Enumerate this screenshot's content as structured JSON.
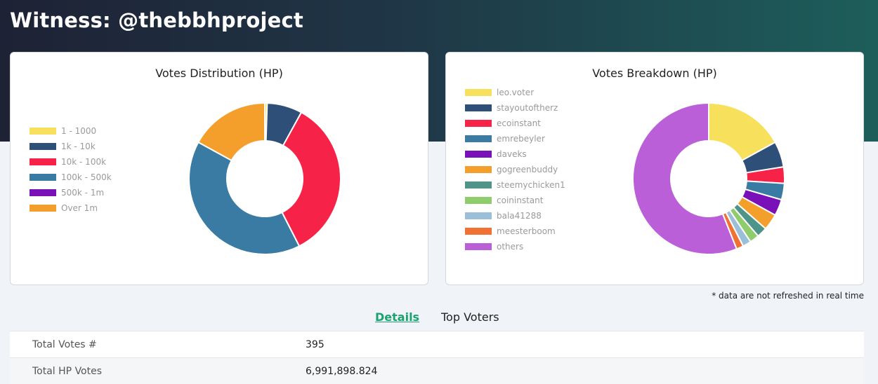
{
  "page": {
    "title": "Witness: @thebbhproject",
    "note": "* data are not refreshed in real time"
  },
  "tabs": [
    {
      "label": "Details",
      "active": true
    },
    {
      "label": "Top Voters",
      "active": false
    }
  ],
  "details": [
    {
      "label": "Total Votes #",
      "value": "395"
    },
    {
      "label": "Total HP Votes",
      "value": "6,991,898.824"
    }
  ],
  "chart_data": [
    {
      "type": "pie",
      "donut": true,
      "title": "Votes Distribution (HP)",
      "legend_position": "left",
      "categories": [
        "1 - 1000",
        "1k - 10k",
        "10k - 100k",
        "100k - 500k",
        "500k - 1m",
        "Over 1m"
      ],
      "values": [
        0.5,
        7.5,
        34.5,
        40.5,
        0,
        17.0
      ],
      "colors": [
        "#f7e05b",
        "#2e4f78",
        "#f72247",
        "#3a7ba3",
        "#7a10b8",
        "#f49f2b"
      ]
    },
    {
      "type": "pie",
      "donut": true,
      "title": "Votes Breakdown (HP)",
      "legend_position": "left",
      "categories": [
        "leo.voter",
        "stayoutoftherz",
        "ecoinstant",
        "emrebeyler",
        "daveks",
        "gogreenbuddy",
        "steemychicken1",
        "coininstant",
        "bala41288",
        "meesterboom",
        "others"
      ],
      "values": [
        17.0,
        5.5,
        3.5,
        3.5,
        3.5,
        3.5,
        2.2,
        2.0,
        1.8,
        1.5,
        56.0
      ],
      "colors": [
        "#f7e05b",
        "#2e4f78",
        "#f72247",
        "#3a7ba3",
        "#7a10b8",
        "#f49f2b",
        "#4e9488",
        "#8fcc6c",
        "#9bbfd9",
        "#f07131",
        "#ba5fd8"
      ]
    }
  ]
}
